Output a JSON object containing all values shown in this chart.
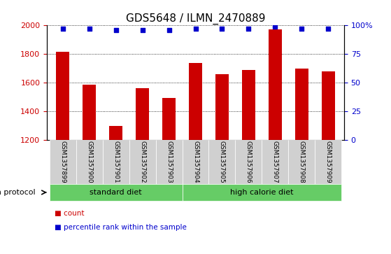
{
  "title": "GDS5648 / ILMN_2470889",
  "samples": [
    "GSM1357899",
    "GSM1357900",
    "GSM1357901",
    "GSM1357902",
    "GSM1357903",
    "GSM1357904",
    "GSM1357905",
    "GSM1357906",
    "GSM1357907",
    "GSM1357908",
    "GSM1357909"
  ],
  "counts": [
    1815,
    1585,
    1295,
    1560,
    1490,
    1735,
    1660,
    1690,
    1970,
    1700,
    1680
  ],
  "percentile_ranks": [
    97,
    97,
    96,
    96,
    96,
    97,
    97,
    97,
    99,
    97,
    97
  ],
  "ylim_left": [
    1200,
    2000
  ],
  "ylim_right": [
    0,
    100
  ],
  "yticks_left": [
    1200,
    1400,
    1600,
    1800,
    2000
  ],
  "yticks_right": [
    0,
    25,
    50,
    75,
    100
  ],
  "bar_color": "#CC0000",
  "dot_color": "#0000CC",
  "bar_width": 0.5,
  "standard_diet_label": "standard diet",
  "high_calorie_label": "high calorie diet",
  "growth_protocol_label": "growth protocol",
  "legend_count_label": "count",
  "legend_percentile_label": "percentile rank within the sample",
  "background_color": "#ffffff",
  "sample_box_color": "#d0d0d0",
  "green_box_color": "#66cc66",
  "title_fontsize": 11,
  "axis_label_color_left": "#CC0000",
  "axis_label_color_right": "#0000CC"
}
